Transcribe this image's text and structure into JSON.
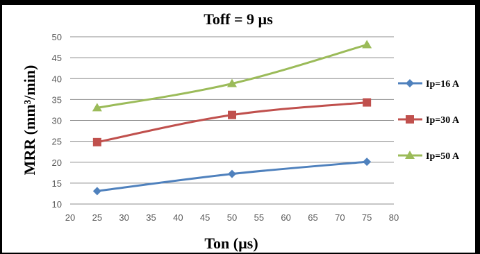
{
  "chart_data": {
    "type": "line",
    "title": "Toff = 9 µs",
    "xlabel": "Ton (µs)",
    "ylabel": "MRR (mm³/min)",
    "xlim": [
      20,
      80
    ],
    "ylim": [
      10,
      50
    ],
    "x_ticks": [
      20,
      25,
      30,
      35,
      40,
      45,
      50,
      55,
      60,
      65,
      70,
      75,
      80
    ],
    "y_ticks": [
      10,
      15,
      20,
      25,
      30,
      35,
      40,
      45,
      50
    ],
    "grid": "horizontal",
    "legend_position": "right",
    "x": [
      25,
      50,
      75
    ],
    "series": [
      {
        "name": "Ip=16 A",
        "values": [
          13.1,
          17.2,
          20.1
        ],
        "color": "#4f81bd",
        "marker": "diamond"
      },
      {
        "name": "Ip=30 A",
        "values": [
          24.8,
          31.3,
          34.3
        ],
        "color": "#c0504d",
        "marker": "square"
      },
      {
        "name": "Ip=50 A",
        "values": [
          33.0,
          38.8,
          48.1
        ],
        "color": "#9bbb59",
        "marker": "triangle"
      }
    ]
  }
}
